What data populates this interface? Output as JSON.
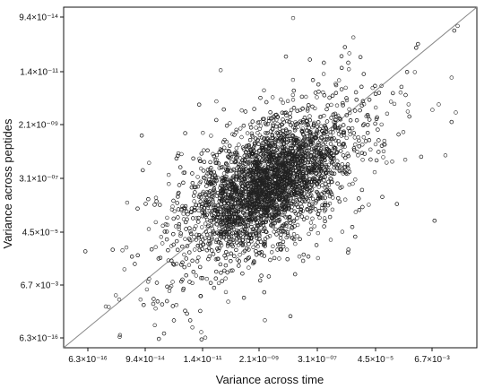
{
  "chart_data": {
    "type": "scatter",
    "xlabel": "Variance across time",
    "ylabel": "Variance across peptides",
    "x_ticks": [
      "6.3×10⁻¹⁶",
      "9.4×10⁻¹⁴",
      "1.4×10⁻¹¹",
      "2.1×10⁻⁰⁹",
      "3.1×10⁻⁰⁷",
      "4.5×10⁻⁵",
      "6.7×10⁻³"
    ],
    "y_ticks": [
      "9.4×10⁻¹⁴",
      "1.4×10⁻¹¹",
      "2.1×10⁻⁰⁹",
      "3.1×10⁻⁰⁷",
      "4.5×10⁻⁵",
      "6.7 ×10⁻³",
      "6.3×10⁻¹⁶"
    ],
    "x_log10_positions": [
      -15.2,
      -13.03,
      -10.85,
      -8.68,
      -6.51,
      -4.35,
      -2.17
    ],
    "y_log10_positions": [
      -13.03,
      -10.85,
      -8.68,
      -6.51,
      -4.35,
      -2.17,
      -15.2
    ],
    "xlim_log10": [
      -15.7,
      -1.9
    ],
    "ylim_log10": [
      -15.7,
      -12.4
    ],
    "identity_line": true,
    "marker": "open-circle",
    "point_color": "#222222",
    "line_color": "#888888",
    "point_count_approx": 5000,
    "cluster": {
      "center_log10": [
        -8.7,
        -6.4
      ],
      "note": "dense elliptical cloud along the diagonal, long tails toward both extremes"
    }
  }
}
